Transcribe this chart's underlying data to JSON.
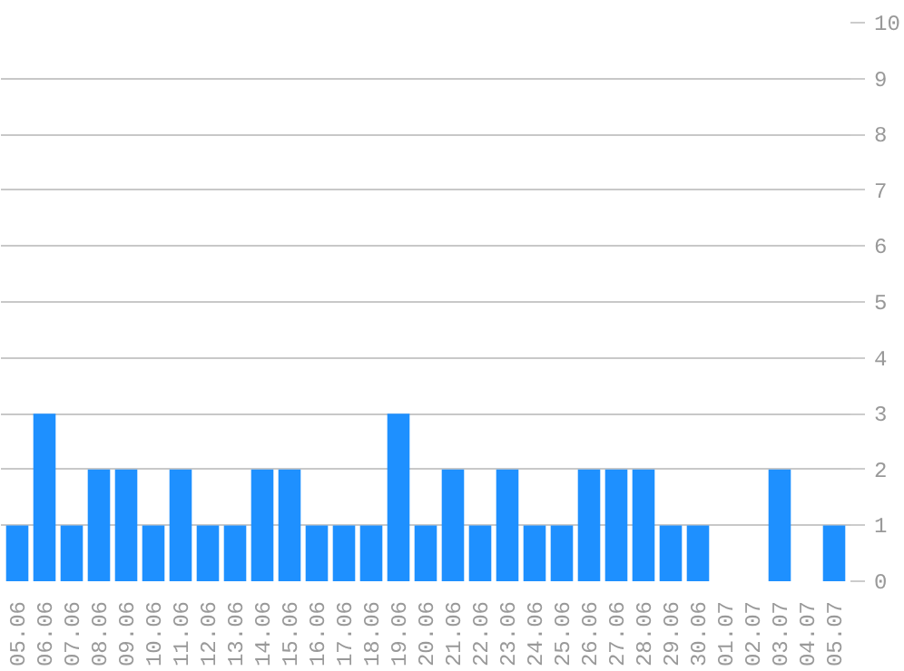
{
  "chart_data": {
    "type": "bar",
    "categories": [
      "05.06",
      "06.06",
      "07.06",
      "08.06",
      "09.06",
      "10.06",
      "11.06",
      "12.06",
      "13.06",
      "14.06",
      "15.06",
      "16.06",
      "17.06",
      "18.06",
      "19.06",
      "20.06",
      "21.06",
      "22.06",
      "23.06",
      "24.06",
      "25.06",
      "26.06",
      "27.06",
      "28.06",
      "29.06",
      "30.06",
      "01.07",
      "02.07",
      "03.07",
      "04.07",
      "05.07"
    ],
    "values": [
      1,
      3,
      1,
      2,
      2,
      1,
      2,
      1,
      1,
      2,
      2,
      1,
      1,
      1,
      3,
      1,
      2,
      1,
      2,
      1,
      1,
      2,
      2,
      2,
      1,
      1,
      0,
      0,
      2,
      0,
      1
    ],
    "color": "#1e90ff",
    "ylim": [
      0,
      10
    ],
    "yticks": [
      0,
      1,
      2,
      3,
      4,
      5,
      6,
      7,
      8,
      9,
      10
    ],
    "grid": "y"
  }
}
